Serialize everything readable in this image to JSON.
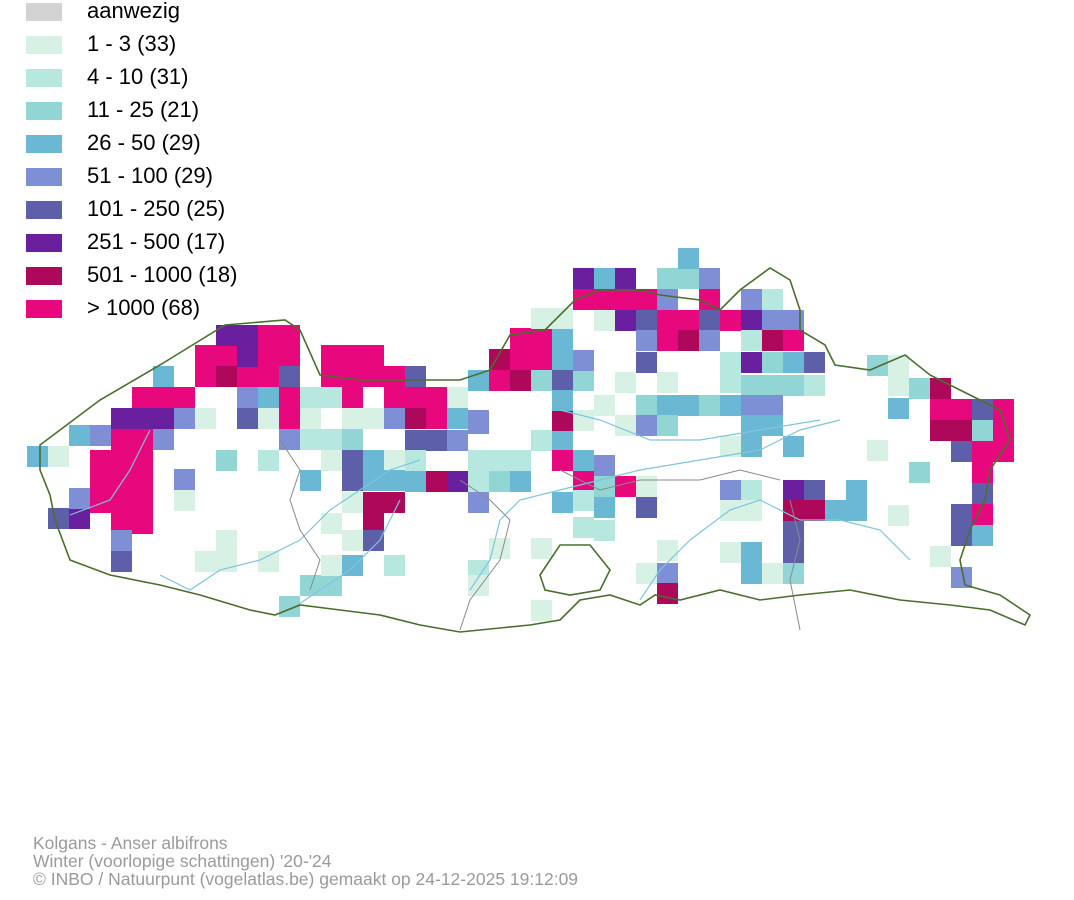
{
  "legend": {
    "items": [
      {
        "label": "aanwezig",
        "color": "#d3d3d3"
      },
      {
        "label": "1 - 3 (33)",
        "color": "#d7f2e4"
      },
      {
        "label": "4 - 10 (31)",
        "color": "#b6e8e0"
      },
      {
        "label": "11 - 25 (21)",
        "color": "#92d5d5"
      },
      {
        "label": "26 - 50 (29)",
        "color": "#6ab8d3"
      },
      {
        "label": "51 - 100 (29)",
        "color": "#7f8fd6"
      },
      {
        "label": "101 - 250 (25)",
        "color": "#5d60a8"
      },
      {
        "label": "251 - 500 (17)",
        "color": "#6a1f9e"
      },
      {
        "label": "501 - 1000 (18)",
        "color": "#ad0859"
      },
      {
        "label": "> 1000 (68)",
        "color": "#e6087c"
      }
    ]
  },
  "map": {
    "border_color": "#4a6e2e",
    "province_border_color": "#8a8a8a",
    "river_color": "#7fc4e0"
  },
  "footer": {
    "species": "Kolgans - Anser albifrons",
    "period": "Winter (voorlopige schattingen) '20-'24",
    "credit": "© INBO / Natuurpunt (vogelatlas.be) gemaakt op 24-12-2025 19:12:09"
  }
}
